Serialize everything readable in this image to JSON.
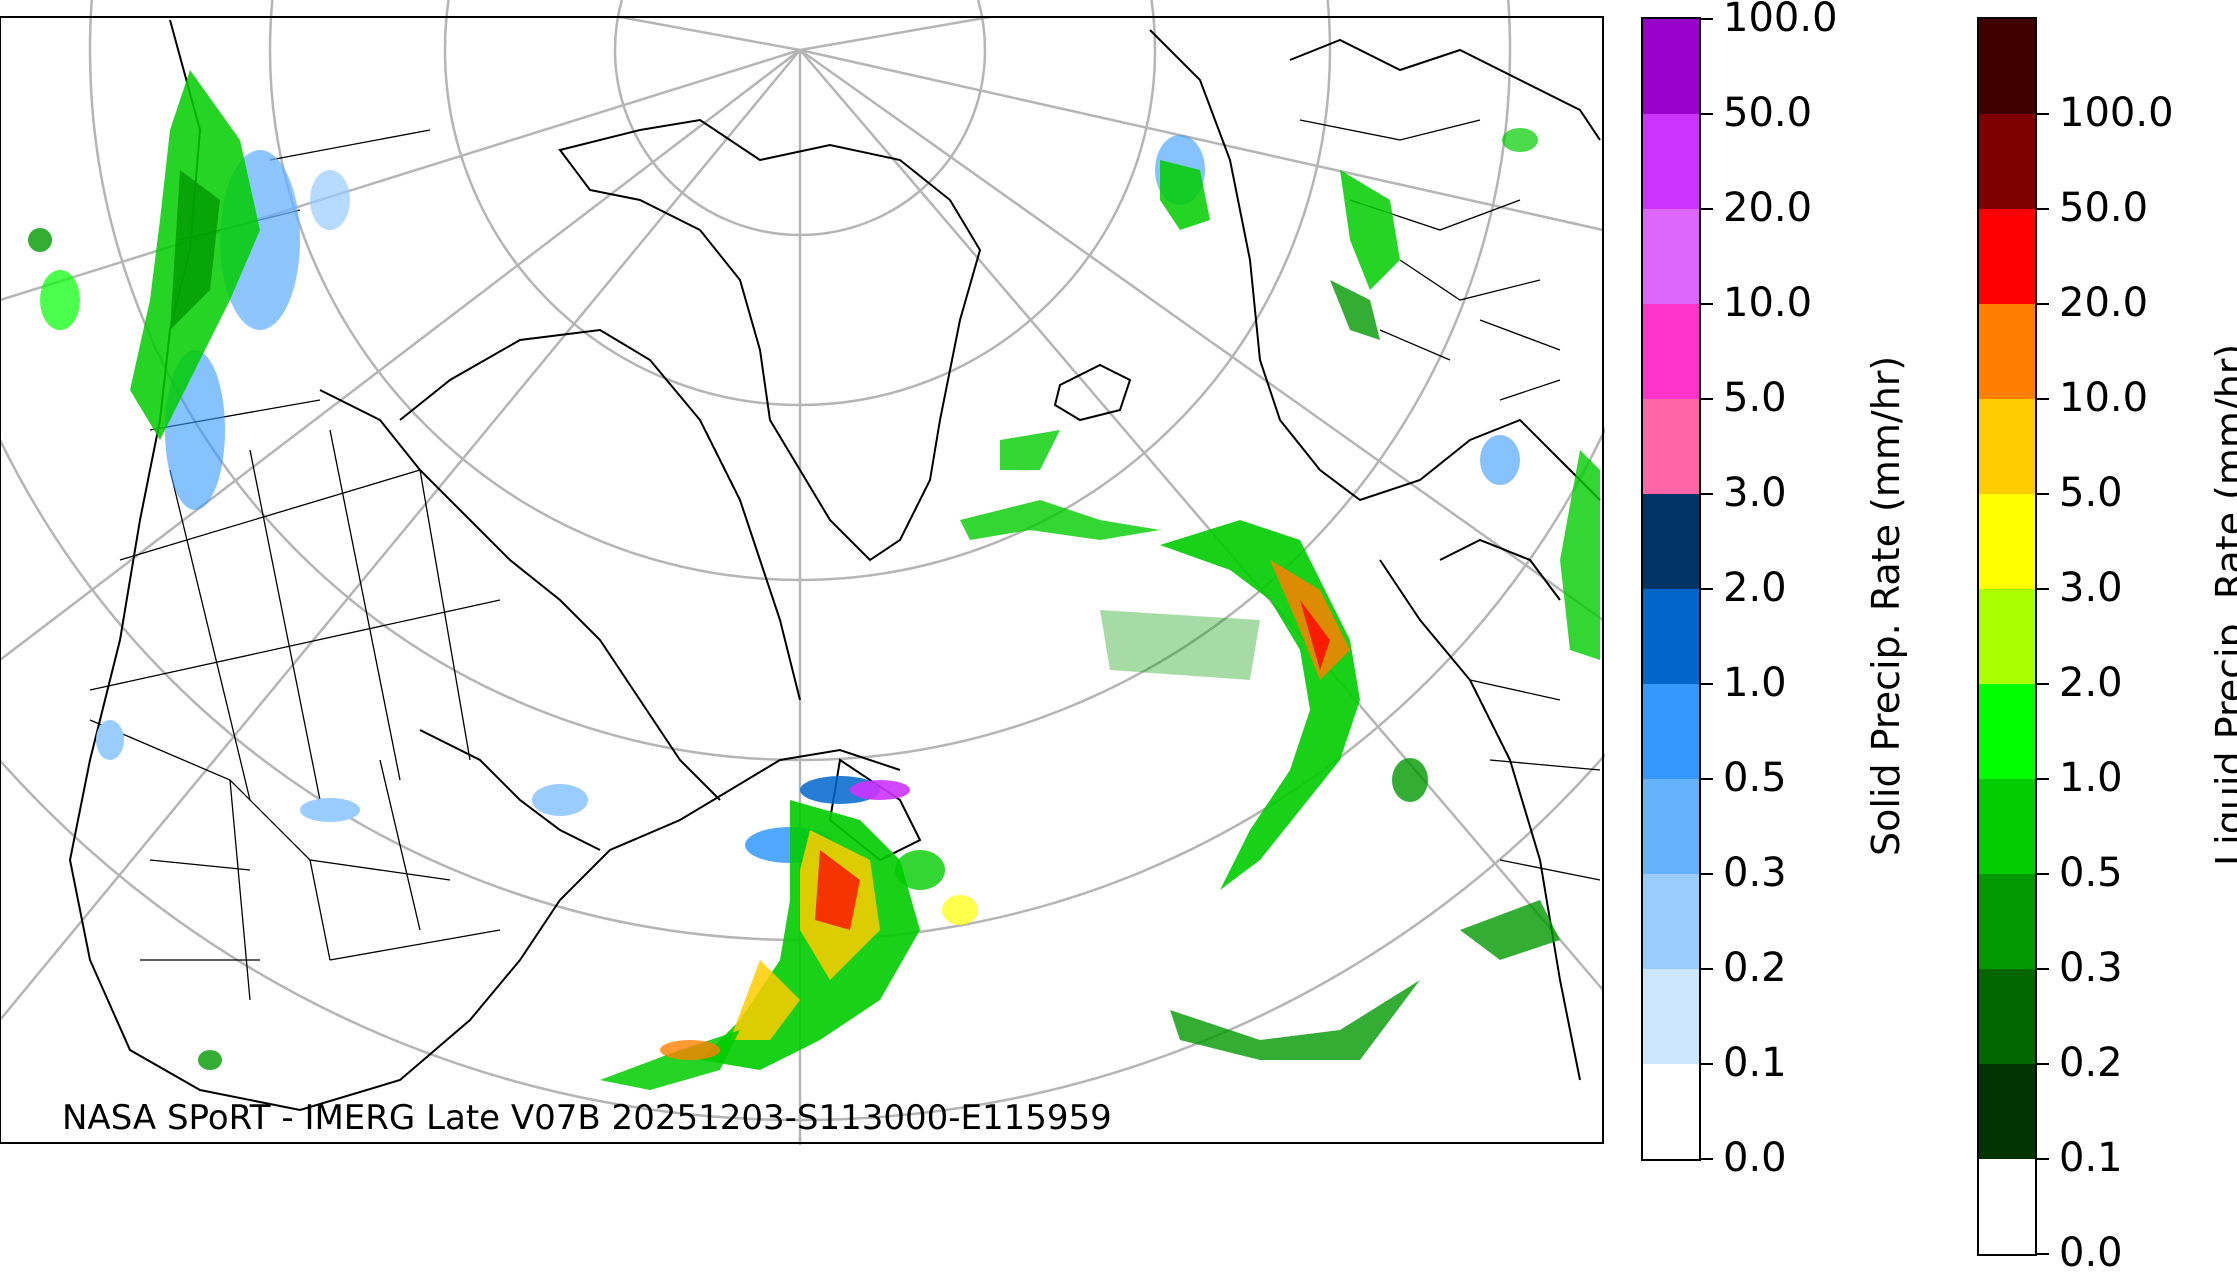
{
  "credit": "NASA SPoRT - IMERG Late V07B 20251203-S113000-E115959",
  "solid_colorbar": {
    "label": "Solid Precip. Rate (mm/hr)",
    "ticks": [
      "0.0",
      "0.1",
      "0.2",
      "0.3",
      "0.5",
      "1.0",
      "2.0",
      "3.0",
      "5.0",
      "10.0",
      "20.0",
      "50.0",
      "100.0"
    ],
    "colors": [
      "#ffffff",
      "#cce6ff",
      "#99ccff",
      "#66b2ff",
      "#3399ff",
      "#0066cc",
      "#003366",
      "#ff66a8",
      "#ff33cc",
      "#dd66ff",
      "#cc33ff",
      "#9900cc"
    ]
  },
  "liquid_colorbar": {
    "label": "Liquid Precip. Rate (mm/hr)",
    "ticks": [
      "0.0",
      "0.1",
      "0.2",
      "0.3",
      "0.5",
      "1.0",
      "2.0",
      "3.0",
      "5.0",
      "10.0",
      "20.0",
      "50.0",
      "100.0"
    ],
    "colors": [
      "#ffffff",
      "#003300",
      "#006600",
      "#009900",
      "#00cc00",
      "#00ff00",
      "#aaff00",
      "#ffff00",
      "#ffcc00",
      "#ff8000",
      "#ff0000",
      "#800000",
      "#400000"
    ]
  }
}
